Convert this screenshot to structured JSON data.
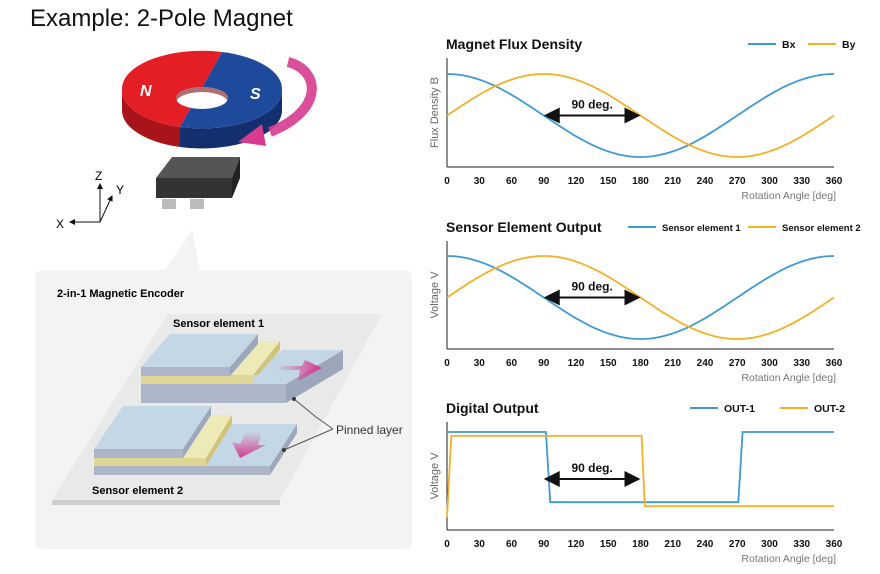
{
  "title": "Example: 2-Pole Magnet",
  "magnet": {
    "north": "N",
    "south": "S"
  },
  "axes": {
    "x": "X",
    "y": "Y",
    "z": "Z"
  },
  "encoder": {
    "title": "2-in-1 Magnetic Encoder",
    "element1": "Sensor element 1",
    "element2": "Sensor element 2",
    "pinned": "Pinned layer"
  },
  "colors": {
    "blue": "#3d9ad6",
    "orange": "#f5b027",
    "red": "#e31e24",
    "navy": "#1f4a9c",
    "pink": "#d63b8f"
  },
  "chart_data": [
    {
      "type": "line",
      "title": "Magnet Flux Density",
      "ylabel": "Flux Density B",
      "xlabel": "Rotation Angle [deg]",
      "xticks": [
        "0",
        "30",
        "60",
        "90",
        "120",
        "150",
        "180",
        "210",
        "240",
        "270",
        "300",
        "330",
        "360"
      ],
      "annotation": "90 deg.",
      "series": [
        {
          "name": "Bx",
          "function": "cos",
          "amplitude": 1
        },
        {
          "name": "By",
          "function": "sin",
          "amplitude": 1
        }
      ]
    },
    {
      "type": "line",
      "title": "Sensor Element Output",
      "ylabel": "Voltage V",
      "xlabel": "Rotation Angle [deg]",
      "xticks": [
        "0",
        "30",
        "60",
        "90",
        "120",
        "150",
        "180",
        "210",
        "240",
        "270",
        "300",
        "330",
        "360"
      ],
      "annotation": "90 deg.",
      "series": [
        {
          "name": "Sensor element 1",
          "function": "cos",
          "amplitude": 1
        },
        {
          "name": "Sensor element 2",
          "function": "sin",
          "amplitude": 1
        }
      ]
    },
    {
      "type": "line",
      "title": "Digital Output",
      "ylabel": "Voltage V",
      "xlabel": "Rotation Angle [deg]",
      "xticks": [
        "0",
        "30",
        "60",
        "90",
        "120",
        "150",
        "180",
        "210",
        "240",
        "270",
        "300",
        "330",
        "360"
      ],
      "annotation": "90 deg.",
      "series": [
        {
          "name": "OUT-1",
          "points": [
            [
              0,
              1
            ],
            [
              92,
              1
            ],
            [
              96,
              0.1
            ],
            [
              271,
              0.1
            ],
            [
              275,
              1
            ],
            [
              360,
              1
            ]
          ]
        },
        {
          "name": "OUT-2",
          "points": [
            [
              0,
              -0.1
            ],
            [
              4,
              0.95
            ],
            [
              181,
              0.95
            ],
            [
              184,
              0.05
            ],
            [
              360,
              0.05
            ]
          ]
        }
      ]
    }
  ]
}
